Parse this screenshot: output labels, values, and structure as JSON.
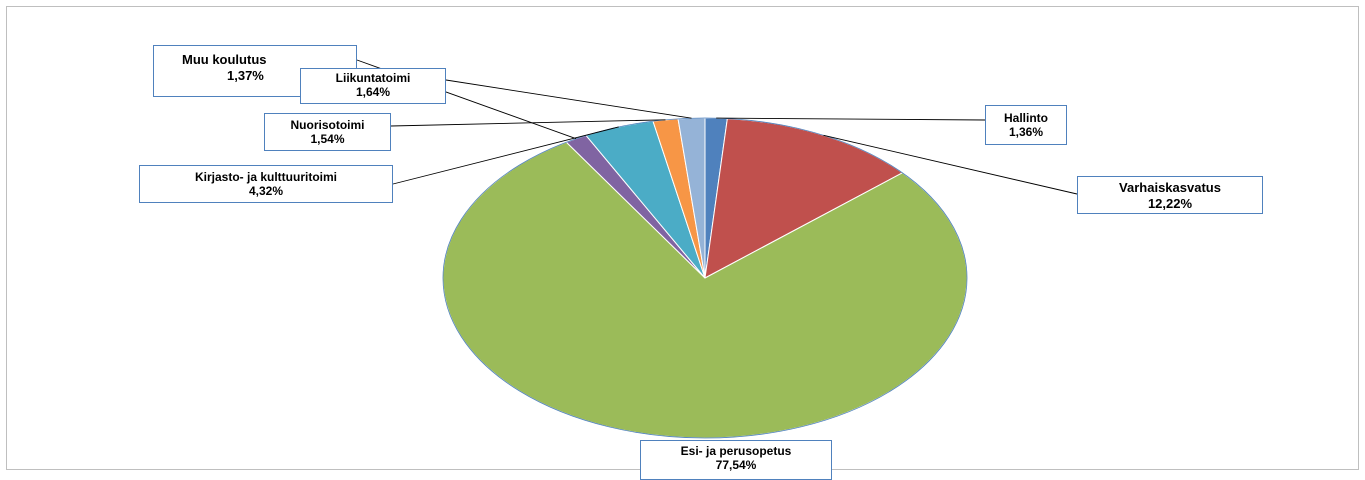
{
  "chart_data": {
    "type": "pie",
    "title": "",
    "start_angle_deg": 0,
    "direction": "clockwise",
    "slices": [
      {
        "name": "Hallinto",
        "value": 1.36,
        "label": "1,36%",
        "color": "#4f81bd"
      },
      {
        "name": "Varhaiskasvatus",
        "value": 12.22,
        "label": "12,22%",
        "color": "#c0504d"
      },
      {
        "name": "Esi- ja perusopetus",
        "value": 77.54,
        "label": "77,54%",
        "color": "#9bbb59"
      },
      {
        "name": "Muu koulutus",
        "value": 1.37,
        "label": "1,37%",
        "color": "#8064a2"
      },
      {
        "name": "Kirjasto- ja kulttuuritoimi",
        "value": 4.32,
        "label": "4,32%",
        "color": "#4bacc6"
      },
      {
        "name": "Nuorisotoimi",
        "value": 1.54,
        "label": "1,54%",
        "color": "#f79646"
      },
      {
        "name": "Liikuntatoimi",
        "value": 1.64,
        "label": "1,64%",
        "color": "#95b3d7"
      }
    ],
    "legend": "none"
  }
}
